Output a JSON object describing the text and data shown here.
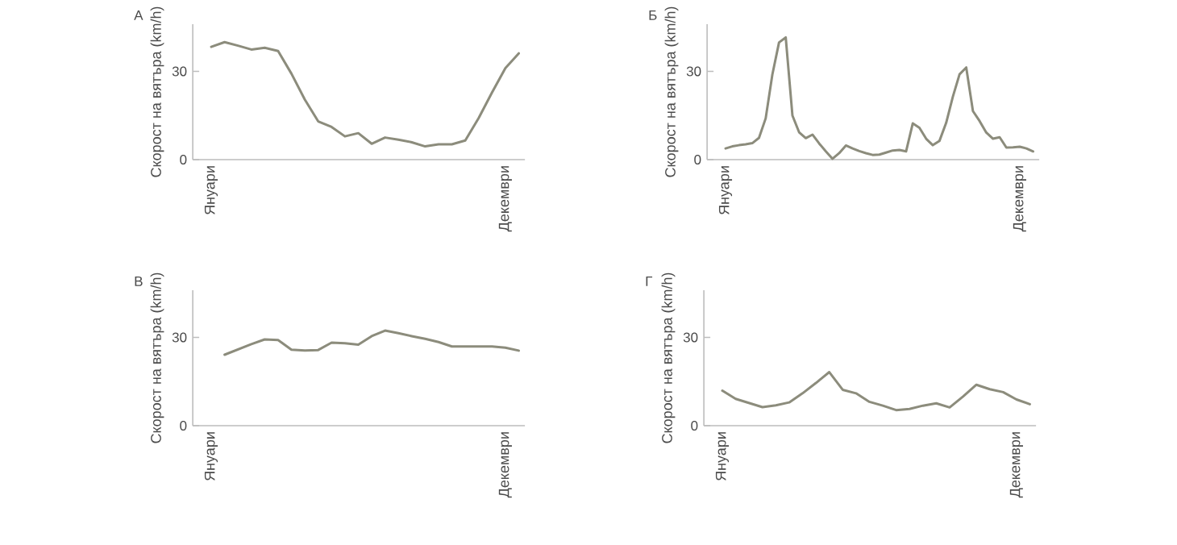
{
  "chart_data": [
    {
      "type": "line",
      "title": "А",
      "ylabel": "Скорост на вятъра (km/h)",
      "color": "#8c8c7c",
      "ylim": [
        0,
        46
      ],
      "yticks": [
        0,
        30
      ],
      "categories": [
        "Януари",
        null,
        null,
        null,
        null,
        null,
        null,
        null,
        null,
        null,
        null,
        null,
        null,
        null,
        null,
        null,
        null,
        null,
        null,
        null,
        null,
        null,
        "Декември",
        null
      ],
      "values": [
        38.3,
        39.9,
        38.7,
        37.4,
        38.0,
        36.9,
        29.2,
        20.4,
        13.0,
        11.1,
        7.9,
        9.0,
        5.4,
        7.5,
        6.8,
        5.9,
        4.5,
        5.2,
        5.2,
        6.5,
        14.1,
        22.8,
        31.1,
        36.1
      ]
    },
    {
      "type": "line",
      "title": "Б",
      "ylabel": "Скорост на вятъра (km/h)",
      "color": "#8c8c7c",
      "ylim": [
        0,
        46
      ],
      "yticks": [
        0,
        30
      ],
      "categories": [
        "Януари",
        null,
        null,
        null,
        null,
        null,
        null,
        null,
        null,
        null,
        null,
        null,
        null,
        null,
        null,
        null,
        null,
        null,
        null,
        null,
        null,
        null,
        null,
        null,
        null,
        null,
        null,
        null,
        null,
        null,
        null,
        null,
        null,
        null,
        null,
        null,
        null,
        null,
        null,
        null,
        null,
        null,
        null,
        null,
        "Декември",
        null,
        null
      ],
      "values": [
        3.8,
        4.5,
        4.9,
        5.2,
        5.6,
        7.4,
        14,
        28.9,
        39.8,
        41.5,
        15,
        9.3,
        7.3,
        8.5,
        5.5,
        2.8,
        0.3,
        2.2,
        4.8,
        3.8,
        2.9,
        2.2,
        1.6,
        1.7,
        2.4,
        3.1,
        3.3,
        2.8,
        12.3,
        10.8,
        7.1,
        4.9,
        6.4,
        12.5,
        21.4,
        29,
        31.3,
        16.5,
        13.1,
        9.2,
        7.1,
        7.6,
        4.1,
        4.2,
        4.4,
        3.8,
        2.8
      ]
    },
    {
      "type": "line",
      "title": "В",
      "ylabel": "Скорост на вятъра (km/h)",
      "color": "#8c8c7c",
      "ylim": [
        0,
        46
      ],
      "yticks": [
        0,
        30
      ],
      "categories": [
        "Януари",
        null,
        null,
        null,
        null,
        null,
        null,
        null,
        null,
        null,
        null,
        null,
        null,
        null,
        null,
        null,
        null,
        null,
        null,
        null,
        null,
        null,
        "Декември",
        null
      ],
      "values": [
        null,
        24.1,
        25.9,
        27.7,
        29.3,
        29.1,
        25.8,
        25.5,
        25.7,
        28.2,
        28.0,
        27.5,
        30.4,
        32.3,
        31.4,
        30.4,
        29.5,
        28.4,
        26.9,
        26.9,
        26.9,
        26.9,
        26.5,
        25.5
      ]
    },
    {
      "type": "line",
      "title": "Г",
      "ylabel": "Скорост на вятъра (km/h)",
      "color": "#8c8c7c",
      "ylim": [
        0,
        46
      ],
      "yticks": [
        0,
        30
      ],
      "categories": [
        "Януари",
        null,
        null,
        null,
        null,
        null,
        null,
        null,
        null,
        null,
        null,
        null,
        null,
        null,
        null,
        null,
        null,
        null,
        null,
        null,
        null,
        null,
        "Декември",
        null
      ],
      "values": [
        11.9,
        9.1,
        7.7,
        6.3,
        6.9,
        7.9,
        11,
        14.5,
        18.2,
        12.2,
        11,
        8.1,
        6.8,
        5.3,
        5.7,
        6.8,
        7.6,
        6.2,
        9.9,
        13.9,
        12.4,
        11.4,
        8.9,
        7.3
      ]
    }
  ]
}
